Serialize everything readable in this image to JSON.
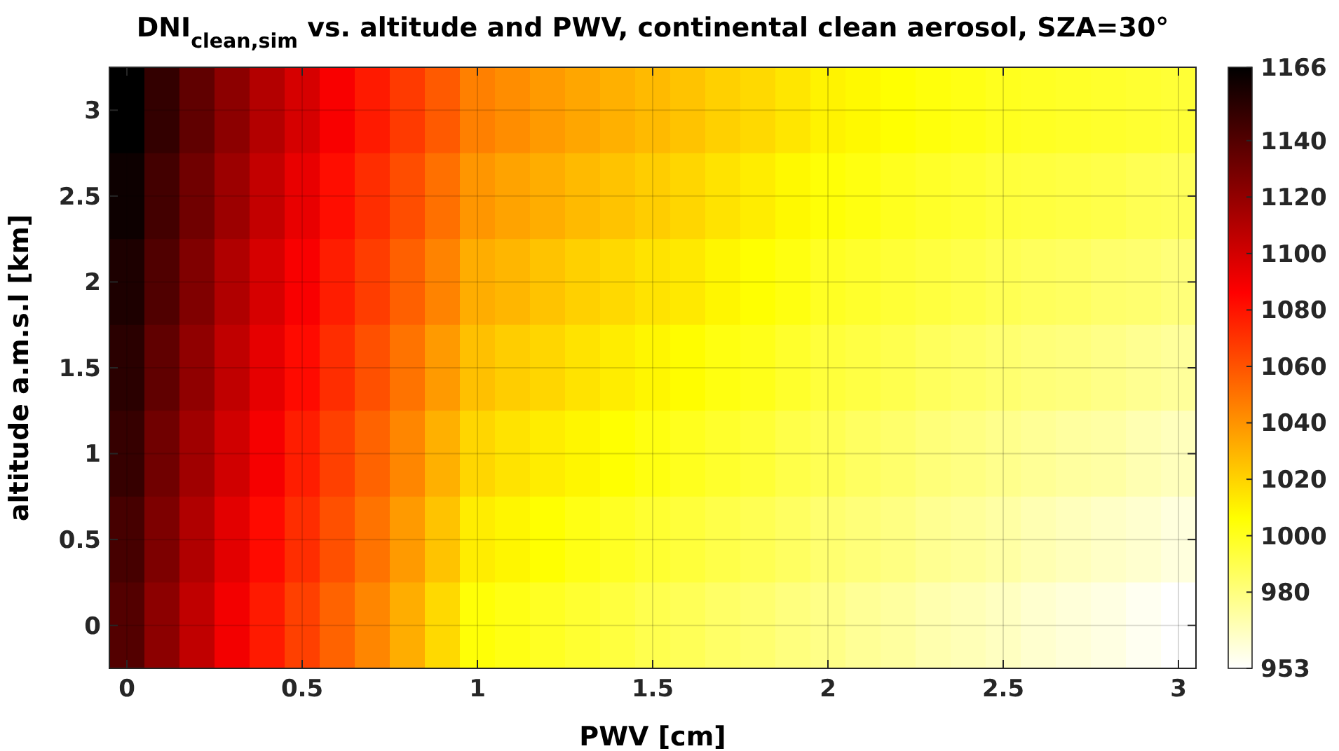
{
  "chart_data": {
    "type": "heatmap",
    "title": "DNI$_{clean,sim}$ vs. altitude and PWV, continental clean aerosol, SZA=30°",
    "xlabel": "PWV [cm]",
    "ylabel": "altitude a.m.s.l [km]",
    "x": [
      0,
      0.1,
      0.2,
      0.3,
      0.4,
      0.5,
      0.6,
      0.7,
      0.8,
      0.9,
      1,
      1.1,
      1.2,
      1.3,
      1.4,
      1.5,
      1.6,
      1.7,
      1.8,
      1.9,
      2,
      2.1,
      2.2,
      2.3,
      2.4,
      2.5,
      2.6,
      2.7,
      2.8,
      2.9,
      3
    ],
    "xlim": [
      -0.05,
      3.05
    ],
    "xticks": [
      0,
      0.5,
      1,
      1.5,
      2,
      2.5,
      3
    ],
    "y_categories": [
      "3",
      "2.5",
      "2",
      "1.5",
      "1",
      "0.5",
      "0"
    ],
    "cells": [
      [
        1166,
        1150,
        1136,
        1122,
        1110,
        1099,
        1088,
        1078,
        1068,
        1058,
        1046,
        1042,
        1038,
        1034,
        1031,
        1028,
        1025,
        1021,
        1018,
        1014,
        1010,
        1008,
        1006,
        1004,
        1002,
        1000,
        999,
        998,
        997,
        996,
        995
      ],
      [
        1162,
        1145,
        1131,
        1117,
        1105,
        1093,
        1082,
        1072,
        1062,
        1051,
        1039,
        1035,
        1032,
        1028,
        1025,
        1022,
        1019,
        1015,
        1012,
        1008,
        1005,
        1003,
        1000,
        998,
        996,
        994,
        993,
        992,
        991,
        989,
        988
      ],
      [
        1157,
        1141,
        1126,
        1111,
        1099,
        1088,
        1077,
        1067,
        1056,
        1045,
        1032,
        1029,
        1025,
        1021,
        1018,
        1015,
        1013,
        1009,
        1006,
        1003,
        999,
        997,
        995,
        993,
        991,
        989,
        987,
        986,
        984,
        983,
        981
      ],
      [
        1153,
        1136,
        1121,
        1106,
        1094,
        1083,
        1072,
        1061,
        1050,
        1038,
        1026,
        1022,
        1019,
        1015,
        1012,
        1009,
        1007,
        1003,
        1001,
        997,
        994,
        992,
        990,
        987,
        985,
        983,
        981,
        980,
        978,
        976,
        974
      ],
      [
        1149,
        1131,
        1116,
        1101,
        1089,
        1077,
        1066,
        1055,
        1044,
        1031,
        1019,
        1015,
        1012,
        1009,
        1006,
        1003,
        1000,
        997,
        995,
        991,
        989,
        986,
        984,
        981,
        979,
        977,
        975,
        973,
        972,
        969,
        967
      ],
      [
        1144,
        1127,
        1111,
        1095,
        1083,
        1072,
        1061,
        1050,
        1038,
        1025,
        1012,
        1009,
        1006,
        1002,
        999,
        996,
        994,
        991,
        989,
        986,
        983,
        981,
        979,
        976,
        974,
        972,
        969,
        967,
        965,
        963,
        960
      ],
      [
        1140,
        1122,
        1106,
        1090,
        1078,
        1066,
        1055,
        1044,
        1032,
        1018,
        1005,
        1002,
        999,
        996,
        993,
        990,
        988,
        985,
        983,
        980,
        978,
        975,
        973,
        970,
        968,
        966,
        963,
        961,
        959,
        956,
        953
      ]
    ],
    "clim": [
      953,
      1166
    ],
    "cticks": [
      953,
      980,
      1000,
      1020,
      1040,
      1060,
      1080,
      1100,
      1120,
      1140,
      1166
    ],
    "grid": true
  }
}
